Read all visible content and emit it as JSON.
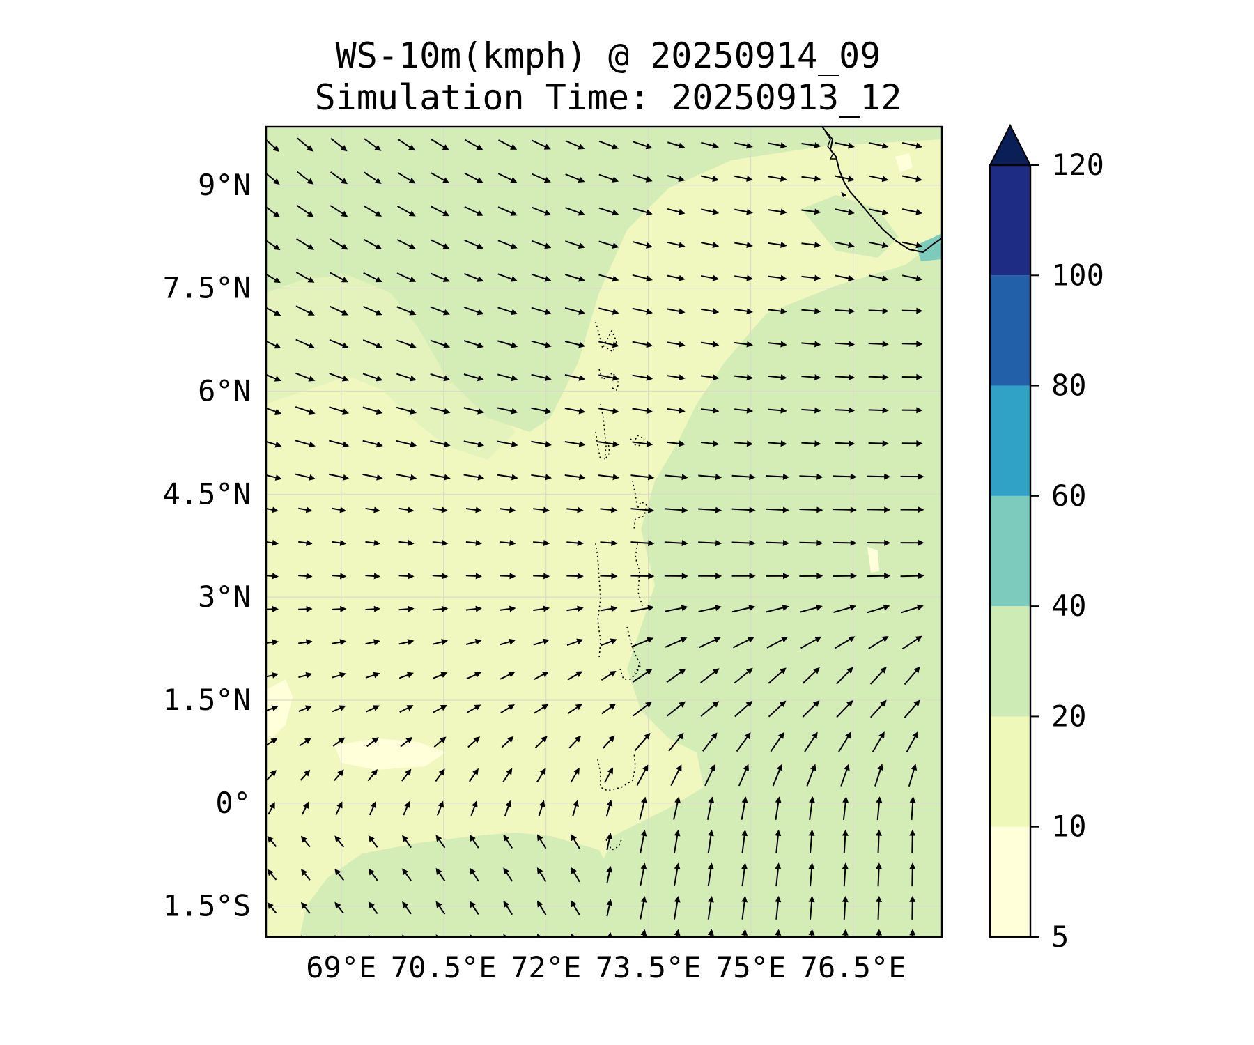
{
  "title": {
    "line1": "WS-10m(kmph) @ 20250914_09",
    "line2": "Simulation Time: 20250913_12"
  },
  "map": {
    "lon_range": [
      67.9,
      77.8
    ],
    "lat_range": [
      -1.95,
      9.85
    ],
    "x_ticks": [
      {
        "value": 69.0,
        "label": "69°E"
      },
      {
        "value": 70.5,
        "label": "70.5°E"
      },
      {
        "value": 72.0,
        "label": "72°E"
      },
      {
        "value": 73.5,
        "label": "73.5°E"
      },
      {
        "value": 75.0,
        "label": "75°E"
      },
      {
        "value": 76.5,
        "label": "76.5°E"
      }
    ],
    "y_ticks": [
      {
        "value": 9.0,
        "label": "9°N"
      },
      {
        "value": 7.5,
        "label": "7.5°N"
      },
      {
        "value": 6.0,
        "label": "6°N"
      },
      {
        "value": 4.5,
        "label": "4.5°N"
      },
      {
        "value": 3.0,
        "label": "3°N"
      },
      {
        "value": 1.5,
        "label": "1.5°N"
      },
      {
        "value": 0.0,
        "label": "0°"
      },
      {
        "value": -1.5,
        "label": "1.5°S"
      }
    ],
    "gridlines": true
  },
  "colorbar": {
    "levels": [
      5,
      10,
      20,
      40,
      60,
      80,
      100,
      120
    ],
    "labels": [
      "5",
      "10",
      "20",
      "40",
      "60",
      "80",
      "100",
      "120"
    ],
    "colors": [
      "#ffffd9",
      "#eef8b9",
      "#cdebb4",
      "#7ccbbd",
      "#2fa2c6",
      "#2260a9",
      "#1e2d83"
    ],
    "extend_color": "#0b1f57",
    "extend": "max"
  },
  "colors": {
    "band_5_10": "#ffffd9",
    "band_10_20": "#f0f8c0",
    "band_20_40": "#d4edb6"
  }
}
